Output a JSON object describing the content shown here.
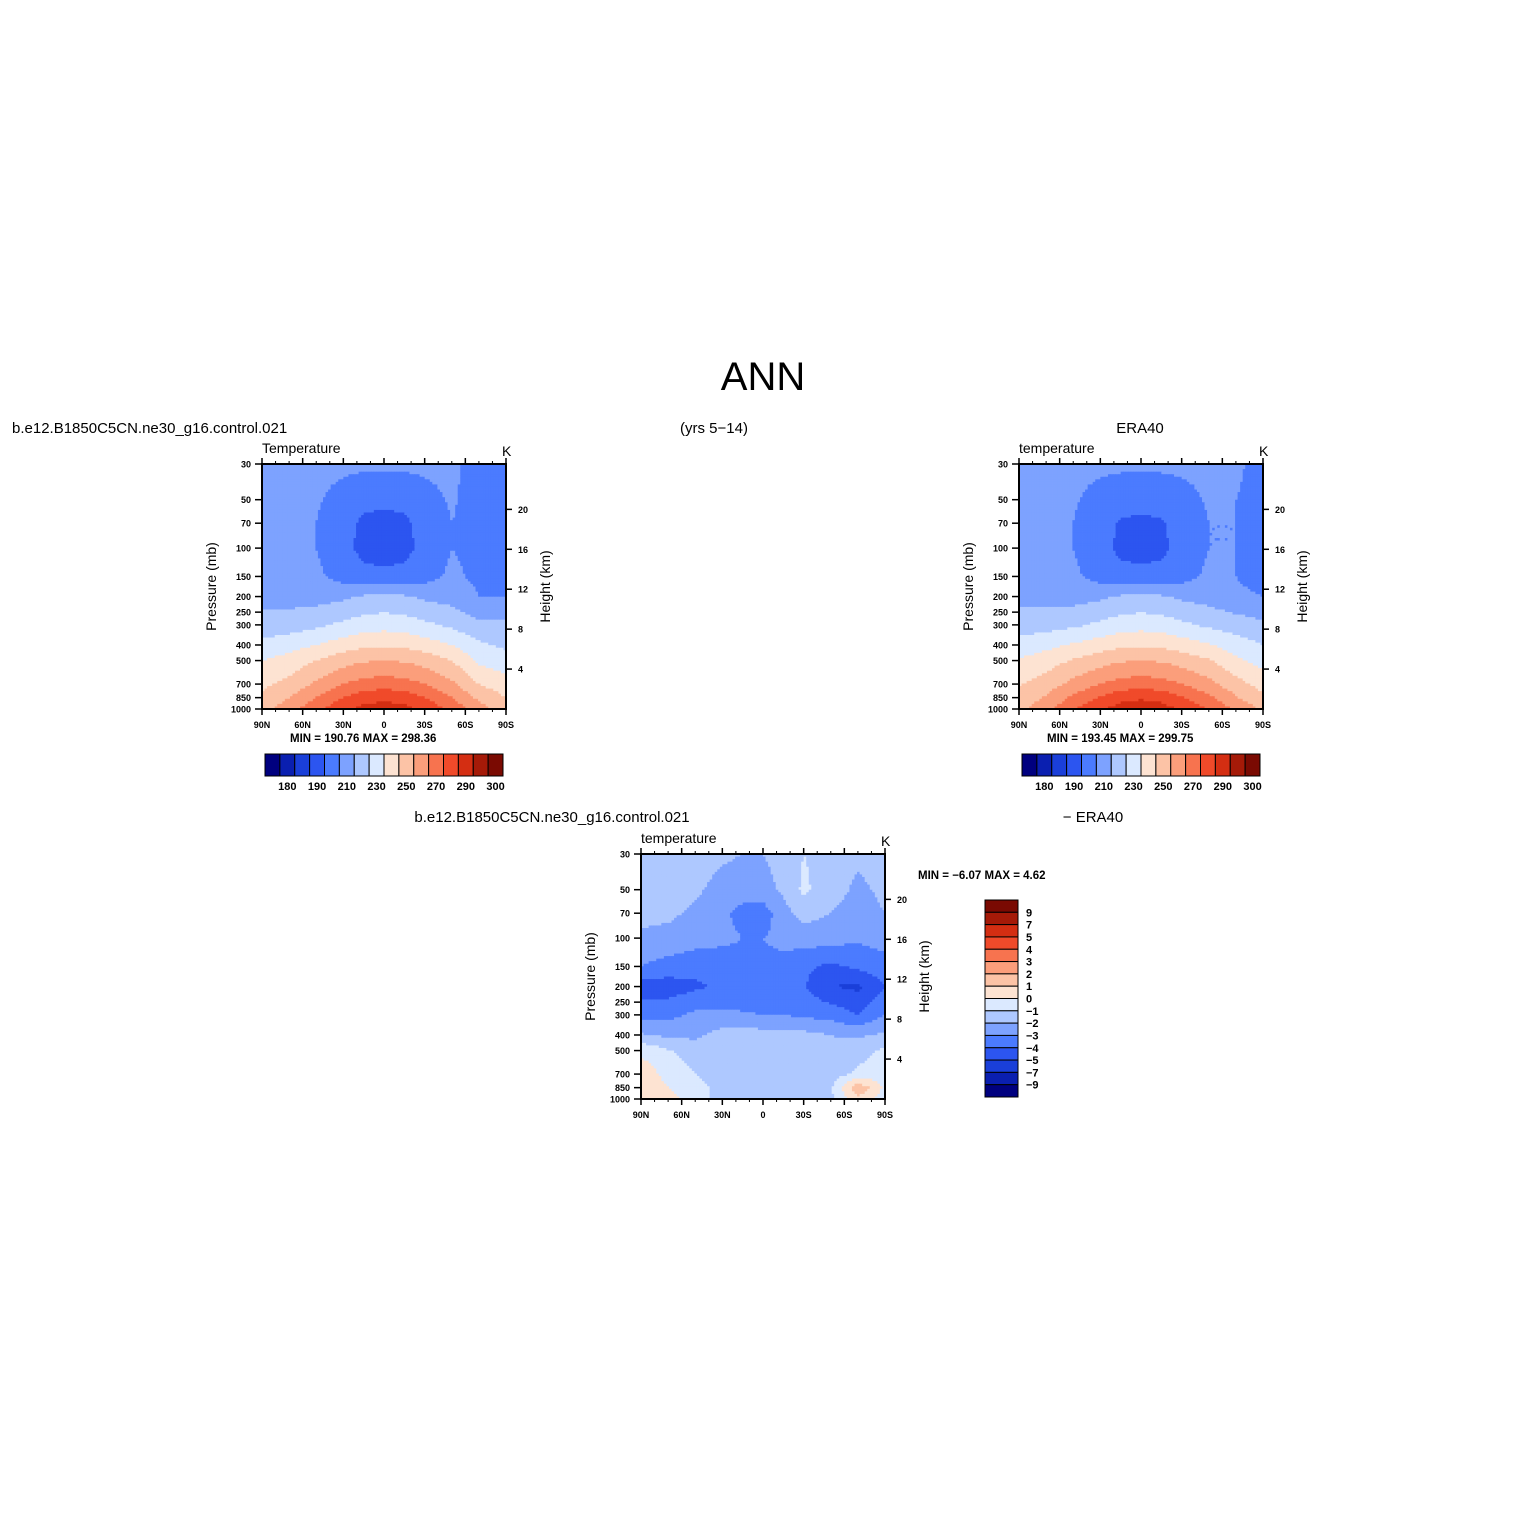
{
  "figure": {
    "title": "ANN",
    "case_name": "b.e12.B1850C5CN.ne30_g16.control.021",
    "years": "(yrs 5−14)",
    "obs_name": "ERA40",
    "diff_case_name": "b.e12.B1850C5CN.ne30_g16.control.021",
    "diff_obs_label": "− ERA40"
  },
  "chart_data": [
    {
      "type": "heatmap",
      "title": "Temperature",
      "units": "K",
      "xlabel": "",
      "ylabel": "Pressure (mb)",
      "ylabel_right": "Height (km)",
      "x_ticks": [
        "90N",
        "60N",
        "30N",
        "0",
        "30S",
        "60S",
        "90S"
      ],
      "y_ticks": [
        30,
        50,
        70,
        100,
        150,
        200,
        250,
        300,
        400,
        500,
        700,
        850,
        1000
      ],
      "y_right_ticks": [
        4,
        8,
        12,
        16,
        20
      ],
      "y_scale": "log",
      "ylim": [
        1000,
        30
      ],
      "min_label": "MIN =",
      "min_value": "190.76",
      "max_label": "MAX =",
      "max_value": "298.36",
      "colorbar_labels": [
        "180",
        "190",
        "210",
        "230",
        "250",
        "270",
        "290",
        "300"
      ],
      "field": {
        "lat": [
          90,
          70,
          50,
          30,
          15,
          0,
          -15,
          -30,
          -50,
          -70,
          -90
        ],
        "p": [
          30,
          50,
          70,
          100,
          150,
          200,
          300,
          400,
          500,
          700,
          850,
          1000
        ],
        "values": [
          [
            212,
            212,
            212,
            212,
            212,
            212,
            212,
            212,
            212,
            206,
            206
          ],
          [
            212,
            212,
            211,
            207,
            203,
            202,
            203,
            207,
            211,
            206,
            206
          ],
          [
            212,
            212,
            210,
            204,
            198,
            197,
            198,
            204,
            210,
            207,
            207
          ],
          [
            212,
            212,
            210,
            203,
            197,
            196,
            197,
            203,
            210,
            207,
            207
          ],
          [
            213,
            213,
            212,
            206,
            203,
            202,
            203,
            206,
            212,
            208,
            208
          ],
          [
            216,
            216,
            216,
            218,
            221,
            222,
            221,
            218,
            216,
            210,
            210
          ],
          [
            224,
            225,
            228,
            232,
            235,
            236,
            235,
            232,
            228,
            222,
            222
          ],
          [
            233,
            236,
            240,
            245,
            248,
            249,
            248,
            245,
            240,
            232,
            228
          ],
          [
            240,
            244,
            250,
            256,
            259,
            260,
            259,
            256,
            250,
            238,
            234
          ],
          [
            248,
            253,
            262,
            270,
            274,
            275,
            274,
            270,
            262,
            250,
            244
          ],
          [
            252,
            260,
            270,
            280,
            286,
            288,
            286,
            280,
            270,
            258,
            250
          ],
          [
            256,
            266,
            277,
            288,
            293,
            294,
            293,
            288,
            277,
            264,
            255
          ]
        ]
      }
    },
    {
      "type": "heatmap",
      "title": "temperature",
      "units": "K",
      "xlabel": "",
      "ylabel": "Pressure (mb)",
      "ylabel_right": "Height (km)",
      "x_ticks": [
        "90N",
        "60N",
        "30N",
        "0",
        "30S",
        "60S",
        "90S"
      ],
      "y_ticks": [
        30,
        50,
        70,
        100,
        150,
        200,
        250,
        300,
        400,
        500,
        700,
        850,
        1000
      ],
      "y_right_ticks": [
        4,
        8,
        12,
        16,
        20
      ],
      "y_scale": "log",
      "ylim": [
        1000,
        30
      ],
      "min_label": "MIN =",
      "min_value": "193.45",
      "max_label": "MAX =",
      "max_value": "299.75",
      "colorbar_labels": [
        "180",
        "190",
        "210",
        "230",
        "250",
        "270",
        "290",
        "300"
      ],
      "field": {
        "lat": [
          90,
          70,
          50,
          30,
          15,
          0,
          -15,
          -30,
          -50,
          -70,
          -90
        ],
        "p": [
          30,
          50,
          70,
          100,
          150,
          200,
          300,
          400,
          500,
          700,
          850,
          1000
        ],
        "values": [
          [
            212,
            212,
            212,
            212,
            212,
            212,
            212,
            212,
            212,
            212,
            206
          ],
          [
            212,
            212,
            211,
            207,
            204,
            203,
            204,
            207,
            211,
            210,
            206
          ],
          [
            212,
            213,
            210,
            204,
            199,
            198,
            199,
            204,
            210,
            210,
            207
          ],
          [
            214,
            215,
            210,
            203,
            198,
            197,
            198,
            203,
            210,
            210,
            207
          ],
          [
            216,
            216,
            212,
            206,
            203,
            202,
            203,
            206,
            212,
            210,
            206
          ],
          [
            217,
            216,
            216,
            218,
            221,
            222,
            221,
            218,
            216,
            212,
            210
          ],
          [
            225,
            226,
            228,
            232,
            235,
            236,
            235,
            232,
            228,
            225,
            222
          ],
          [
            234,
            237,
            241,
            245,
            248,
            249,
            248,
            245,
            241,
            235,
            230
          ],
          [
            241,
            245,
            251,
            256,
            259,
            260,
            259,
            256,
            251,
            242,
            236
          ],
          [
            249,
            255,
            263,
            270,
            274,
            275,
            274,
            270,
            263,
            254,
            246
          ],
          [
            253,
            261,
            272,
            281,
            287,
            289,
            287,
            281,
            272,
            261,
            252
          ],
          [
            257,
            267,
            279,
            289,
            294,
            295,
            294,
            289,
            279,
            268,
            258
          ]
        ]
      }
    },
    {
      "type": "heatmap",
      "title": "temperature",
      "units": "K",
      "xlabel": "",
      "ylabel": "Pressure (mb)",
      "ylabel_right": "Height (km)",
      "x_ticks": [
        "90N",
        "60N",
        "30N",
        "0",
        "30S",
        "60S",
        "90S"
      ],
      "y_ticks": [
        30,
        50,
        70,
        100,
        150,
        200,
        250,
        300,
        400,
        500,
        700,
        850,
        1000
      ],
      "y_right_ticks": [
        4,
        8,
        12,
        16,
        20
      ],
      "y_scale": "log",
      "ylim": [
        1000,
        30
      ],
      "min_label": "MIN =",
      "min_value": "−6.07",
      "max_label": "MAX =",
      "max_value": "4.62",
      "colorbar_labels": [
        "9",
        "7",
        "5",
        "4",
        "3",
        "2",
        "1",
        "0",
        "−1",
        "−2",
        "−3",
        "−4",
        "−5",
        "−7",
        "−9"
      ],
      "field": {
        "lat": [
          90,
          70,
          50,
          30,
          15,
          0,
          -15,
          -30,
          -50,
          -70,
          -90
        ],
        "p": [
          30,
          50,
          70,
          100,
          150,
          200,
          300,
          400,
          500,
          700,
          850,
          1000
        ],
        "values": [
          [
            -1.5,
            -1.5,
            -1.5,
            -1.8,
            -2.0,
            -2.0,
            -1.6,
            -1.0,
            -1.4,
            -1.8,
            -1.6
          ],
          [
            -1.6,
            -1.6,
            -1.8,
            -2.4,
            -2.6,
            -2.4,
            -1.8,
            -0.8,
            -1.6,
            -2.2,
            -1.8
          ],
          [
            -1.7,
            -1.8,
            -2.2,
            -2.8,
            -3.3,
            -3.5,
            -2.4,
            -1.6,
            -2.0,
            -2.4,
            -2.0
          ],
          [
            -2.2,
            -2.3,
            -2.6,
            -2.8,
            -3.0,
            -3.0,
            -2.8,
            -2.5,
            -2.6,
            -2.8,
            -2.6
          ],
          [
            -3.0,
            -3.4,
            -3.6,
            -3.5,
            -3.3,
            -3.2,
            -3.2,
            -3.8,
            -4.2,
            -3.8,
            -3.4
          ],
          [
            -4.6,
            -4.5,
            -4.2,
            -3.8,
            -3.7,
            -3.8,
            -3.7,
            -3.9,
            -5.0,
            -5.2,
            -4.0
          ],
          [
            -3.3,
            -3.3,
            -2.8,
            -2.8,
            -2.9,
            -3.0,
            -3.0,
            -3.2,
            -3.4,
            -4.0,
            -3.0
          ],
          [
            -1.9,
            -2.2,
            -2.2,
            -1.6,
            -1.5,
            -1.6,
            -1.6,
            -1.7,
            -2.0,
            -2.2,
            -1.8
          ],
          [
            -0.2,
            -0.9,
            -1.6,
            -1.7,
            -1.6,
            -1.6,
            -1.6,
            -1.6,
            -1.8,
            -1.4,
            -0.8
          ],
          [
            0.6,
            -0.3,
            -1.0,
            -1.5,
            -1.6,
            -1.7,
            -1.6,
            -1.6,
            -1.5,
            -0.8,
            -0.4
          ],
          [
            0.7,
            0.0,
            -0.7,
            -1.3,
            -1.4,
            -1.6,
            -1.5,
            -1.4,
            -1.2,
            1.8,
            -0.2
          ],
          [
            0.5,
            0.4,
            -0.6,
            -1.3,
            -1.4,
            -1.5,
            -1.4,
            -1.4,
            -1.2,
            0.8,
            -0.6
          ]
        ]
      }
    }
  ]
}
